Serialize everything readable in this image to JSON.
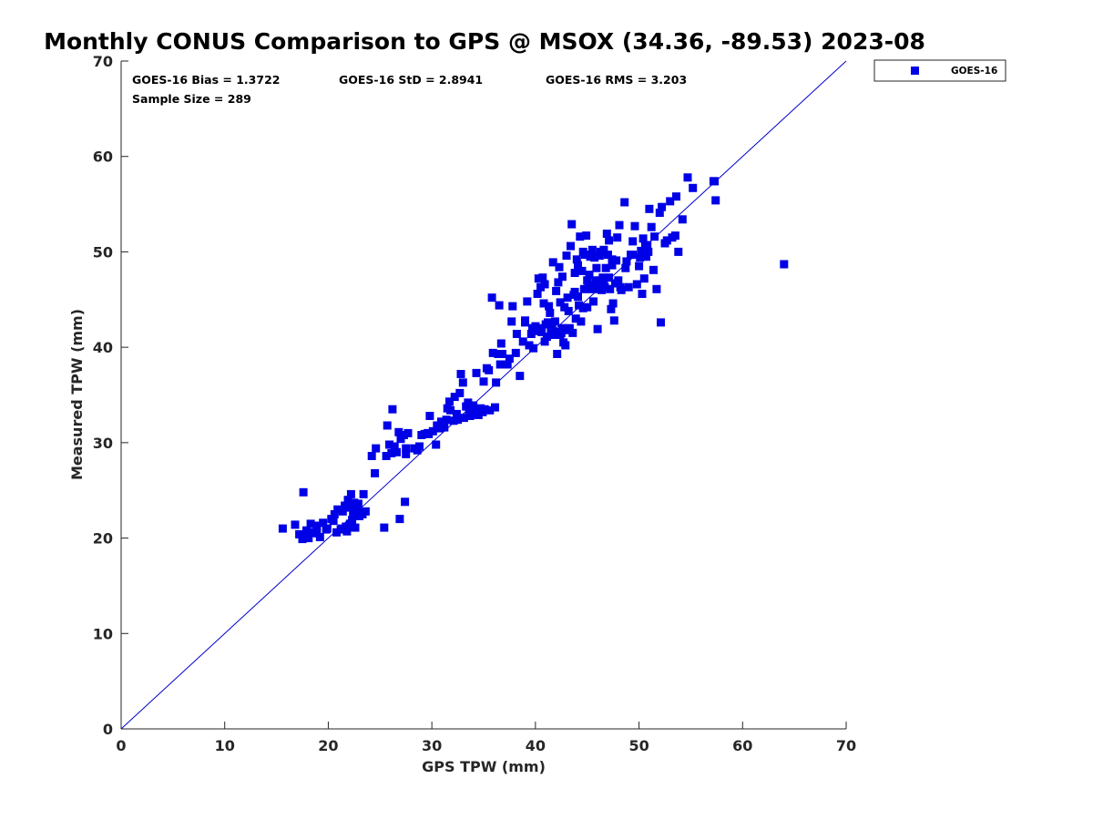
{
  "chart_data": {
    "type": "scatter",
    "title": "Monthly CONUS Comparison to GPS @ MSOX (34.36, -89.53) 2023-08",
    "xlabel": "GPS TPW (mm)",
    "ylabel": "Measured TPW (mm)",
    "xlim": [
      0,
      70
    ],
    "ylim": [
      0,
      70
    ],
    "xticks": [
      0,
      10,
      20,
      30,
      40,
      50,
      60,
      70
    ],
    "yticks": [
      0,
      10,
      20,
      30,
      40,
      50,
      60,
      70
    ],
    "grid": false,
    "legend": {
      "placement": "outside-top-right"
    },
    "stats": {
      "bias_label": "GOES-16 Bias = 1.3722",
      "std_label": "GOES-16 StD = 2.8941",
      "rms_label": "GOES-16 RMS = 3.203",
      "sample_label": "Sample Size = 289"
    },
    "reference_line": {
      "type": "one-to-one",
      "color": "#0000cc"
    },
    "series": [
      {
        "name": "GOES-16",
        "color": "#0000e6",
        "marker": "square",
        "points": [
          [
            15.6,
            21.0
          ],
          [
            16.8,
            21.4
          ],
          [
            17.2,
            20.4
          ],
          [
            17.5,
            19.9
          ],
          [
            17.6,
            24.8
          ],
          [
            17.9,
            20.3
          ],
          [
            18.1,
            20.0
          ],
          [
            18.3,
            21.5
          ],
          [
            18.6,
            20.6
          ],
          [
            18.9,
            21.3
          ],
          [
            19.2,
            20.1
          ],
          [
            19.5,
            21.6
          ],
          [
            19.9,
            21.0
          ],
          [
            20.3,
            22.0
          ],
          [
            20.6,
            22.5
          ],
          [
            20.8,
            20.6
          ],
          [
            20.9,
            23.0
          ],
          [
            21.2,
            20.9
          ],
          [
            21.4,
            22.8
          ],
          [
            21.6,
            23.4
          ],
          [
            21.8,
            20.7
          ],
          [
            21.9,
            24.0
          ],
          [
            22.0,
            21.2
          ],
          [
            22.1,
            23.2
          ],
          [
            22.2,
            24.6
          ],
          [
            22.3,
            21.9
          ],
          [
            22.4,
            22.6
          ],
          [
            22.5,
            23.7
          ],
          [
            22.6,
            21.1
          ],
          [
            22.7,
            22.9
          ],
          [
            22.9,
            23.6
          ],
          [
            23.0,
            22.3
          ],
          [
            23.2,
            22.7
          ],
          [
            23.4,
            24.6
          ],
          [
            23.6,
            22.8
          ],
          [
            21.3,
            21.0
          ],
          [
            22.1,
            21.5
          ],
          [
            20.5,
            21.8
          ],
          [
            25.4,
            21.1
          ],
          [
            26.9,
            22.0
          ],
          [
            27.4,
            23.8
          ],
          [
            24.2,
            28.6
          ],
          [
            24.6,
            29.4
          ],
          [
            25.6,
            28.6
          ],
          [
            25.7,
            31.8
          ],
          [
            25.9,
            29.8
          ],
          [
            26.1,
            28.9
          ],
          [
            26.2,
            33.5
          ],
          [
            26.4,
            29.6
          ],
          [
            26.6,
            29.0
          ],
          [
            26.8,
            31.1
          ],
          [
            27.0,
            30.4
          ],
          [
            27.3,
            30.8
          ],
          [
            27.5,
            29.4
          ],
          [
            27.7,
            31.0
          ],
          [
            27.5,
            28.8
          ],
          [
            28.3,
            29.4
          ],
          [
            28.8,
            29.6
          ],
          [
            29.0,
            30.8
          ],
          [
            29.3,
            30.9
          ],
          [
            29.6,
            31.0
          ],
          [
            29.8,
            32.8
          ],
          [
            30.1,
            31.2
          ],
          [
            30.4,
            29.8
          ],
          [
            30.5,
            31.8
          ],
          [
            30.7,
            31.5
          ],
          [
            31.0,
            32.0
          ],
          [
            31.2,
            31.6
          ],
          [
            31.4,
            32.4
          ],
          [
            31.5,
            33.6
          ],
          [
            31.7,
            34.3
          ],
          [
            32.2,
            34.8
          ],
          [
            32.5,
            32.4
          ],
          [
            32.7,
            35.2
          ],
          [
            32.8,
            37.2
          ],
          [
            33.0,
            36.3
          ],
          [
            33.1,
            32.6
          ],
          [
            33.3,
            33.8
          ],
          [
            33.5,
            34.2
          ],
          [
            33.7,
            32.8
          ],
          [
            33.9,
            33.5
          ],
          [
            34.2,
            33.0
          ],
          [
            34.3,
            37.3
          ],
          [
            34.5,
            32.9
          ],
          [
            34.7,
            33.6
          ],
          [
            34.9,
            33.2
          ],
          [
            35.1,
            33.5
          ],
          [
            35.3,
            37.8
          ],
          [
            35.5,
            37.6
          ],
          [
            35.6,
            33.4
          ],
          [
            35.8,
            45.2
          ],
          [
            35.9,
            39.4
          ],
          [
            36.2,
            36.3
          ],
          [
            36.1,
            33.7
          ],
          [
            36.4,
            39.3
          ],
          [
            36.5,
            44.4
          ],
          [
            36.6,
            38.2
          ],
          [
            36.7,
            40.4
          ],
          [
            37.3,
            38.2
          ],
          [
            37.7,
            42.7
          ],
          [
            37.8,
            44.3
          ],
          [
            38.1,
            39.4
          ],
          [
            38.5,
            37.0
          ],
          [
            38.8,
            40.6
          ],
          [
            39.0,
            42.6
          ],
          [
            39.2,
            44.8
          ],
          [
            39.4,
            40.2
          ],
          [
            39.6,
            41.4
          ],
          [
            39.8,
            39.9
          ],
          [
            40.0,
            42.2
          ],
          [
            40.2,
            45.6
          ],
          [
            40.3,
            47.2
          ],
          [
            40.4,
            42.0
          ],
          [
            40.5,
            46.3
          ],
          [
            40.6,
            41.6
          ],
          [
            40.7,
            47.3
          ],
          [
            40.8,
            44.6
          ],
          [
            40.9,
            46.6
          ],
          [
            41.0,
            42.4
          ],
          [
            41.1,
            41.1
          ],
          [
            41.2,
            42.6
          ],
          [
            41.3,
            44.3
          ],
          [
            41.4,
            43.6
          ],
          [
            41.5,
            41.9
          ],
          [
            41.6,
            42.1
          ],
          [
            41.7,
            48.9
          ],
          [
            41.8,
            41.3
          ],
          [
            41.9,
            42.7
          ],
          [
            42.0,
            45.9
          ],
          [
            42.1,
            39.3
          ],
          [
            42.2,
            46.8
          ],
          [
            42.3,
            48.4
          ],
          [
            42.4,
            44.7
          ],
          [
            42.5,
            41.5
          ],
          [
            42.6,
            47.4
          ],
          [
            42.7,
            40.5
          ],
          [
            42.8,
            44.2
          ],
          [
            42.9,
            40.2
          ],
          [
            43.0,
            49.6
          ],
          [
            43.1,
            45.2
          ],
          [
            43.2,
            43.8
          ],
          [
            43.3,
            42.0
          ],
          [
            43.4,
            50.6
          ],
          [
            43.5,
            52.9
          ],
          [
            43.6,
            41.5
          ],
          [
            43.7,
            45.5
          ],
          [
            43.8,
            47.8
          ],
          [
            43.9,
            43.0
          ],
          [
            44.0,
            49.2
          ],
          [
            44.1,
            48.6
          ],
          [
            44.2,
            44.4
          ],
          [
            44.3,
            51.6
          ],
          [
            44.4,
            42.7
          ],
          [
            44.5,
            48.0
          ],
          [
            44.6,
            50.0
          ],
          [
            44.7,
            46.1
          ],
          [
            44.8,
            49.7
          ],
          [
            44.9,
            51.7
          ],
          [
            45.0,
            44.2
          ],
          [
            45.1,
            46.5
          ],
          [
            45.2,
            47.6
          ],
          [
            45.3,
            49.5
          ],
          [
            45.4,
            46.1
          ],
          [
            45.5,
            50.2
          ],
          [
            45.6,
            44.8
          ],
          [
            45.7,
            49.4
          ],
          [
            45.8,
            47.0
          ],
          [
            45.9,
            48.3
          ],
          [
            46.0,
            41.9
          ],
          [
            46.1,
            46.1
          ],
          [
            46.2,
            49.6
          ],
          [
            46.3,
            50.0
          ],
          [
            46.4,
            46.0
          ],
          [
            46.5,
            47.3
          ],
          [
            46.6,
            50.2
          ],
          [
            46.7,
            46.3
          ],
          [
            46.8,
            48.3
          ],
          [
            46.9,
            51.9
          ],
          [
            47.0,
            49.7
          ],
          [
            47.1,
            51.2
          ],
          [
            47.2,
            46.1
          ],
          [
            47.3,
            44.0
          ],
          [
            47.4,
            48.6
          ],
          [
            47.5,
            44.6
          ],
          [
            47.6,
            42.8
          ],
          [
            47.7,
            46.7
          ],
          [
            47.8,
            49.1
          ],
          [
            47.9,
            51.5
          ],
          [
            48.0,
            47.0
          ],
          [
            48.1,
            52.8
          ],
          [
            48.2,
            46.3
          ],
          [
            48.6,
            55.2
          ],
          [
            48.8,
            49.0
          ],
          [
            49.0,
            46.3
          ],
          [
            49.2,
            49.7
          ],
          [
            49.4,
            51.1
          ],
          [
            49.6,
            52.7
          ],
          [
            49.8,
            46.6
          ],
          [
            50.0,
            48.5
          ],
          [
            50.2,
            50.1
          ],
          [
            50.3,
            45.6
          ],
          [
            50.4,
            51.4
          ],
          [
            50.5,
            47.2
          ],
          [
            50.7,
            49.5
          ],
          [
            50.8,
            50.7
          ],
          [
            50.9,
            50.0
          ],
          [
            51.0,
            54.5
          ],
          [
            51.2,
            52.6
          ],
          [
            51.4,
            48.1
          ],
          [
            51.5,
            51.6
          ],
          [
            51.7,
            46.1
          ],
          [
            52.0,
            54.1
          ],
          [
            52.1,
            42.6
          ],
          [
            52.2,
            54.7
          ],
          [
            52.7,
            51.2
          ],
          [
            53.0,
            55.3
          ],
          [
            53.2,
            51.5
          ],
          [
            53.5,
            51.7
          ],
          [
            53.6,
            55.8
          ],
          [
            53.8,
            50.0
          ],
          [
            54.2,
            53.4
          ],
          [
            54.7,
            57.8
          ],
          [
            55.2,
            56.7
          ],
          [
            57.3,
            57.4
          ],
          [
            57.4,
            55.4
          ],
          [
            57.2,
            57.4
          ],
          [
            64.0,
            48.7
          ],
          [
            31.8,
            33.4
          ],
          [
            32.1,
            32.3
          ],
          [
            33.6,
            33.1
          ],
          [
            34.0,
            33.9
          ],
          [
            34.8,
            33.3
          ],
          [
            36.8,
            39.3
          ],
          [
            39.7,
            42.0
          ],
          [
            40.1,
            41.7
          ],
          [
            41.4,
            42.5
          ],
          [
            43.2,
            41.8
          ],
          [
            44.1,
            45.3
          ],
          [
            45.0,
            47.0
          ],
          [
            46.3,
            47.0
          ],
          [
            47.1,
            47.3
          ],
          [
            48.3,
            46.0
          ],
          [
            49.4,
            49.7
          ],
          [
            50.1,
            49.4
          ],
          [
            39.0,
            42.8
          ],
          [
            41.9,
            41.6
          ],
          [
            42.6,
            42.0
          ],
          [
            44.6,
            44.1
          ],
          [
            45.8,
            46.3
          ],
          [
            47.4,
            49.2
          ],
          [
            48.7,
            48.3
          ],
          [
            50.6,
            50.7
          ],
          [
            52.5,
            50.9
          ],
          [
            35.0,
            36.4
          ],
          [
            37.5,
            38.8
          ],
          [
            38.2,
            41.4
          ],
          [
            40.9,
            40.6
          ],
          [
            42.4,
            41.3
          ],
          [
            43.8,
            45.8
          ],
          [
            46.6,
            46.7
          ],
          [
            30.9,
            32.2
          ],
          [
            32.4,
            33.0
          ],
          [
            28.6,
            29.2
          ],
          [
            29.7,
            30.9
          ],
          [
            24.5,
            26.8
          ],
          [
            23.3,
            22.5
          ],
          [
            21.7,
            21.2
          ],
          [
            19.8,
            20.9
          ],
          [
            18.9,
            20.5
          ],
          [
            17.9,
            20.8
          ]
        ]
      }
    ]
  }
}
